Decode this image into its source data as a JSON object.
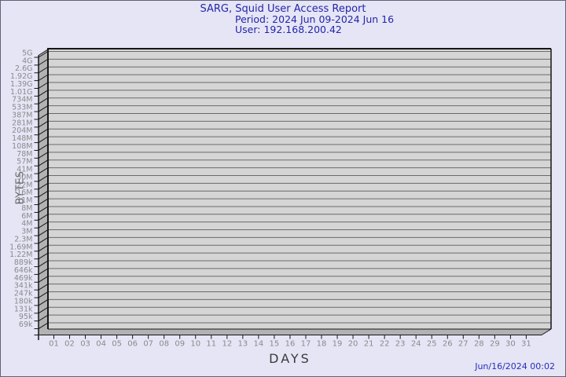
{
  "chart_data": {
    "type": "bar",
    "title": "SARG, Squid User Access Report",
    "subtitle_period": "Period: 2024 Jun 09-2024 Jun 16",
    "subtitle_user": "User: 192.168.200.42",
    "xlabel": "DAYS",
    "ylabel": "BYTES",
    "x_tick_labels": [
      "01",
      "02",
      "03",
      "04",
      "05",
      "06",
      "07",
      "08",
      "09",
      "10",
      "11",
      "12",
      "13",
      "14",
      "15",
      "16",
      "17",
      "18",
      "19",
      "20",
      "21",
      "22",
      "23",
      "24",
      "25",
      "26",
      "27",
      "28",
      "29",
      "30",
      "31"
    ],
    "y_tick_labels": [
      "5G",
      "4G",
      "2.6G",
      "1.92G",
      "1.39G",
      "1.01G",
      "734M",
      "533M",
      "387M",
      "281M",
      "204M",
      "148M",
      "108M",
      "78M",
      "57M",
      "41M",
      "30M",
      "22M",
      "16M",
      "11M",
      "8M",
      "6M",
      "4M",
      "3M",
      "2.3M",
      "1.69M",
      "1.22M",
      "889k",
      "646k",
      "469k",
      "341k",
      "247k",
      "180k",
      "131k",
      "95k",
      "69k"
    ],
    "series": [],
    "grid": true,
    "legend": "none",
    "style": "3d-empty-plot"
  },
  "footer": {
    "timestamp": "Jun/16/2024 00:02"
  },
  "theme": {
    "background": "#e5e5f6",
    "border": "#61617a",
    "plot_fill": "#d5d5d5",
    "wall_fill": "#b2b2b2",
    "grid_color": "#6a6a6a",
    "edge_color": "#161616",
    "tick_label_color": "#8a8a8a",
    "title_color": "#2525a8",
    "timestamp_color": "#2b2bbe"
  }
}
